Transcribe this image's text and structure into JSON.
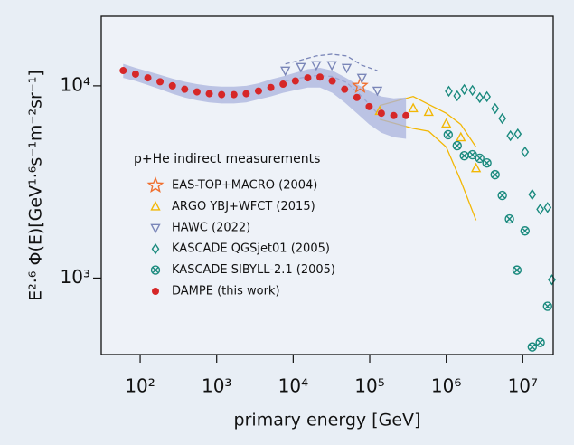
{
  "chart_data": {
    "type": "scatter",
    "xscale": "log",
    "yscale": "log",
    "xlabel": "primary energy [GeV]",
    "ylabel": "E²·⁶ Φ(E)[GeV¹·⁶s⁻¹m⁻²sr⁻¹]",
    "legend_title": "p+He indirect measurements",
    "legend": "center-left",
    "xlim": [
      31,
      25000000
    ],
    "ylim": [
      400,
      23000
    ],
    "xticks": [
      {
        "value": 100,
        "label": "10²"
      },
      {
        "value": 1000,
        "label": "10³"
      },
      {
        "value": 10000,
        "label": "10⁴"
      },
      {
        "value": 100000,
        "label": "10⁵"
      },
      {
        "value": 1000000,
        "label": "10⁶"
      },
      {
        "value": 10000000,
        "label": "10⁷"
      }
    ],
    "yticks": [
      {
        "value": 1000,
        "label": "10³"
      },
      {
        "value": 10000,
        "label": "10⁴"
      }
    ],
    "series": [
      {
        "name": "EAS-TOP+MACRO (2004)",
        "color": "#f07030",
        "marker": "star",
        "x": [
          75000
        ],
        "values": [
          10000
        ]
      },
      {
        "name": "ARGO YBJ+WFCT (2015)",
        "color": "#f2b705",
        "marker": "triangle-up",
        "x": [
          135000,
          370000,
          590000,
          1000000,
          1550000,
          2450000
        ],
        "values": [
          7380,
          7620,
          7300,
          6340,
          5380,
          3720
        ],
        "band_upper": [
          7900,
          8800,
          8000,
          7200,
          6300,
          4800
        ],
        "band_lower": [
          6700,
          6000,
          5800,
          4800,
          3200,
          2000
        ]
      },
      {
        "name": "HAWC (2022)",
        "color": "#7a86b8",
        "marker": "triangle-down",
        "x": [
          7900,
          12600,
          20000,
          32000,
          50000,
          79000,
          126000
        ],
        "values": [
          12030,
          12560,
          12840,
          12840,
          12430,
          11030,
          9470
        ],
        "band_upper": [
          13000,
          13600,
          14300,
          14600,
          14300,
          12800,
          12000
        ],
        "band_lower": [
          10600,
          11000,
          11300,
          11200,
          10400,
          8800,
          7200
        ]
      },
      {
        "name": "KASCADE QGSjet01 (2005)",
        "color": "#1a8a7e",
        "marker": "diamond",
        "x": [
          1080000,
          1390000,
          1720000,
          2200000,
          2740000,
          3400000,
          4350000,
          5400000,
          6900000,
          8600000,
          10700000,
          13300000,
          16900000,
          21100000,
          24000000
        ],
        "values": [
          9370,
          8870,
          9570,
          9470,
          8680,
          8780,
          7620,
          6760,
          5500,
          5620,
          4530,
          2720,
          2280,
          2330,
          980
        ]
      },
      {
        "name": "KASCADE SIBYLL-2.1 (2005)",
        "color": "#1a8a7e",
        "marker": "crossed-circle",
        "x": [
          1060000,
          1390000,
          1720000,
          2200000,
          2740000,
          3400000,
          4350000,
          5400000,
          6700000,
          8400000,
          10700000,
          13300000,
          16900000,
          21100000
        ],
        "values": [
          5570,
          4880,
          4330,
          4380,
          4200,
          3970,
          3450,
          2690,
          2030,
          1100,
          1760,
          438,
          462,
          714
        ]
      },
      {
        "name": "DAMPE (this work)",
        "color": "#d62728",
        "marker": "circle",
        "band_color": "#a9b3de",
        "x": [
          60,
          87,
          126,
          182,
          264,
          382,
          553,
          800,
          1160,
          1680,
          2430,
          3520,
          5100,
          7380,
          10700,
          15500,
          22400,
          32400,
          47000,
          68000,
          98400,
          142000,
          206000,
          298000
        ],
        "values": [
          12000,
          11500,
          11000,
          10500,
          10000,
          9600,
          9300,
          9100,
          9000,
          9000,
          9100,
          9400,
          9800,
          10200,
          10600,
          11000,
          11100,
          10600,
          9600,
          8700,
          7800,
          7200,
          7000,
          7000
        ],
        "band_upper": [
          13000,
          12400,
          11900,
          11400,
          10900,
          10500,
          10200,
          10000,
          9900,
          9900,
          10000,
          10300,
          10800,
          11200,
          11700,
          12200,
          12400,
          12000,
          11100,
          10200,
          9400,
          8800,
          8600,
          8700
        ],
        "band_lower": [
          11000,
          10600,
          10100,
          9600,
          9100,
          8700,
          8400,
          8200,
          8100,
          8100,
          8200,
          8500,
          8800,
          9200,
          9500,
          9800,
          9800,
          9200,
          8200,
          7200,
          6300,
          5700,
          5400,
          5300
        ]
      }
    ]
  }
}
